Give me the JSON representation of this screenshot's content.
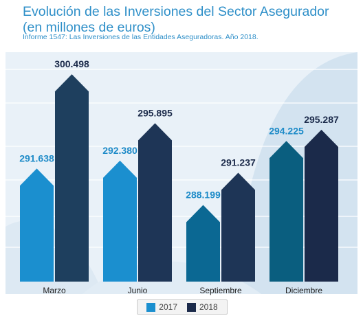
{
  "chart_data": {
    "type": "bar",
    "title": "Evolución de las Inversiones del Sector Asegurador",
    "subtitle_line": "(en millones de euros)",
    "source_note": "Informe 1547: Las Inversiones de las Entidades Aseguradoras. Año 2018.",
    "categories": [
      "Marzo",
      "Junio",
      "Septiembre",
      "Diciembre"
    ],
    "series": [
      {
        "name": "2017",
        "values": [
          291638,
          292380,
          288199,
          294225
        ],
        "labels": [
          "291.638",
          "292.380",
          "288.199",
          "294.225"
        ],
        "colors": [
          "#1b8fcf",
          "#1b8fcf",
          "#0b6893",
          "#0a5e7f"
        ],
        "label_color": "#1e8bc8"
      },
      {
        "name": "2018",
        "values": [
          300498,
          295895,
          291237,
          295287
        ],
        "labels": [
          "300.498",
          "295.895",
          "291.237",
          "295.287"
        ],
        "colors": [
          "#1e3f5e",
          "#1e3556",
          "#1e3556",
          "#1b2a4a"
        ],
        "label_color": "#1b2a4a"
      }
    ],
    "legend_placement": "bottom",
    "grid": true
  }
}
